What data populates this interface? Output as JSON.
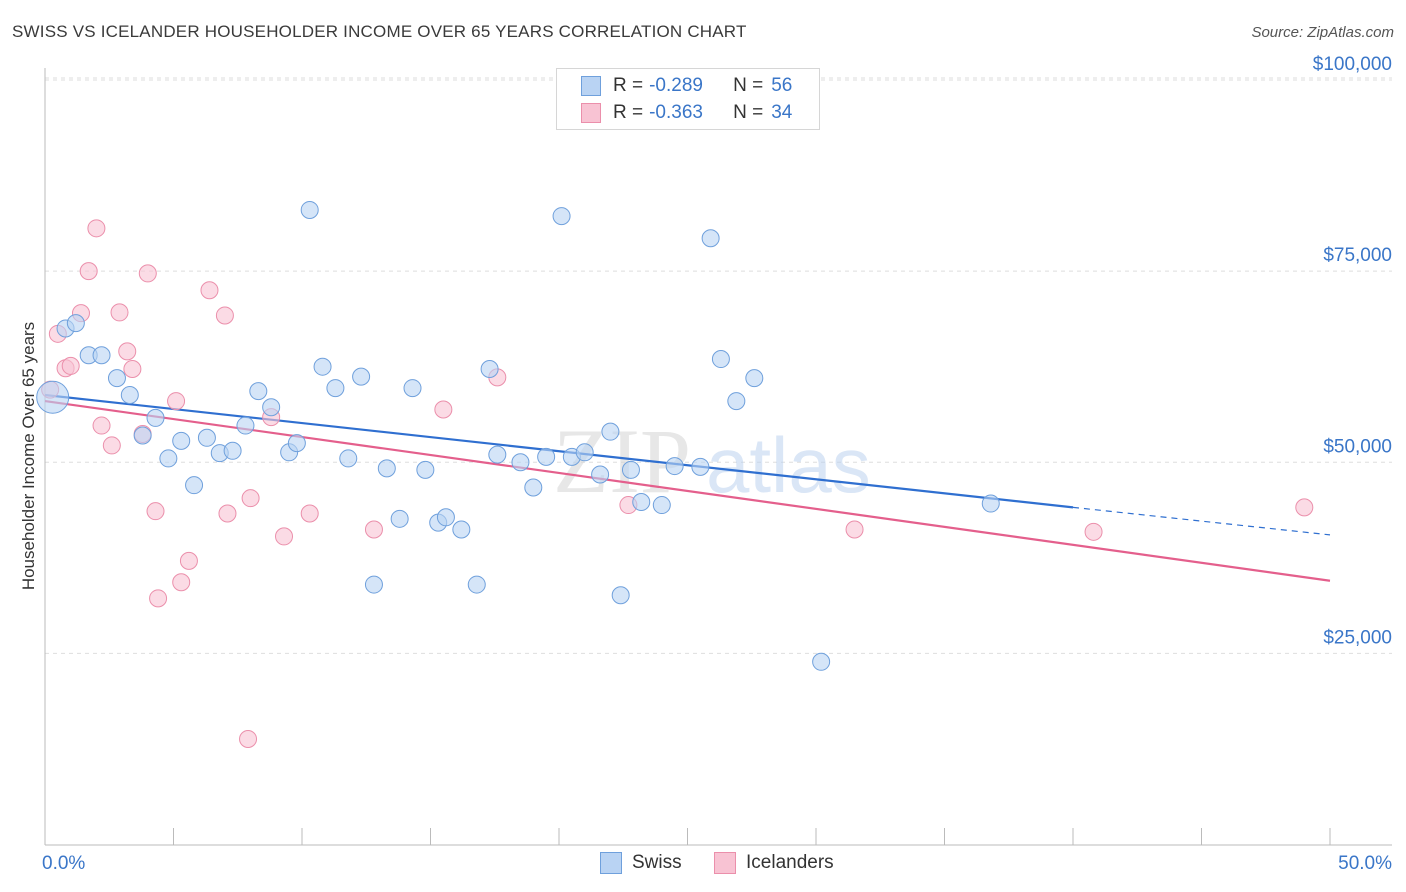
{
  "title": "SWISS VS ICELANDER HOUSEHOLDER INCOME OVER 65 YEARS CORRELATION CHART",
  "source": "Source: ZipAtlas.com",
  "watermark": {
    "zip": "ZIP",
    "atlas": "atlas"
  },
  "legend": {
    "r_label": "R =",
    "n_label": "N =",
    "entries": [
      {
        "name": "Swiss",
        "r": "-0.289",
        "n": "56"
      },
      {
        "name": "Icelanders",
        "r": "-0.363",
        "n": "34"
      }
    ]
  },
  "colors": {
    "swiss_fill": "#b9d3f3",
    "swiss_stroke": "#6fa0dc",
    "swiss_line": "#2f6fd0",
    "ice_fill": "#f8c3d3",
    "ice_stroke": "#eb8fab",
    "ice_line": "#e45f8c",
    "tick_label": "#3a76c8",
    "grid": "#dedede"
  },
  "chart_data": {
    "type": "scatter",
    "title": "SWISS VS ICELANDER HOUSEHOLDER INCOME OVER 65 YEARS CORRELATION CHART",
    "xlabel": "",
    "ylabel": "Householder Income Over 65 years",
    "xlim": [
      0,
      50
    ],
    "ylim": [
      0,
      105000
    ],
    "x_tick_labels": [
      "0.0%",
      "50.0%"
    ],
    "y_ticks": [
      25000,
      50000,
      75000,
      100000
    ],
    "y_tick_labels": [
      "$25,000",
      "$50,000",
      "$75,000",
      "$100,000"
    ],
    "series": [
      {
        "name": "Swiss",
        "points": [
          [
            0.3,
            58500
          ],
          [
            0.8,
            67500
          ],
          [
            1.2,
            68200
          ],
          [
            1.7,
            64000
          ],
          [
            2.2,
            64000
          ],
          [
            2.8,
            61000
          ],
          [
            3.3,
            58800
          ],
          [
            3.8,
            53500
          ],
          [
            4.3,
            55800
          ],
          [
            4.8,
            50500
          ],
          [
            5.3,
            52800
          ],
          [
            5.8,
            47000
          ],
          [
            6.3,
            53200
          ],
          [
            6.8,
            51200
          ],
          [
            7.3,
            51500
          ],
          [
            7.8,
            54800
          ],
          [
            8.3,
            59300
          ],
          [
            8.8,
            57200
          ],
          [
            9.5,
            51300
          ],
          [
            9.8,
            52500
          ],
          [
            10.3,
            83000
          ],
          [
            10.8,
            62500
          ],
          [
            11.3,
            59700
          ],
          [
            11.8,
            50500
          ],
          [
            12.3,
            61200
          ],
          [
            12.8,
            34000
          ],
          [
            13.3,
            49200
          ],
          [
            13.8,
            42600
          ],
          [
            14.3,
            59700
          ],
          [
            14.8,
            49000
          ],
          [
            15.3,
            42100
          ],
          [
            15.6,
            42800
          ],
          [
            16.2,
            41200
          ],
          [
            16.8,
            34000
          ],
          [
            17.3,
            62200
          ],
          [
            17.6,
            51000
          ],
          [
            18.5,
            50000
          ],
          [
            19.0,
            46700
          ],
          [
            19.5,
            50700
          ],
          [
            20.1,
            82200
          ],
          [
            20.5,
            50700
          ],
          [
            21.0,
            51300
          ],
          [
            21.6,
            48400
          ],
          [
            22.0,
            54000
          ],
          [
            22.4,
            32600
          ],
          [
            22.8,
            49000
          ],
          [
            23.2,
            44800
          ],
          [
            24.0,
            44400
          ],
          [
            24.5,
            49500
          ],
          [
            25.5,
            49400
          ],
          [
            25.9,
            79300
          ],
          [
            26.3,
            63500
          ],
          [
            26.9,
            58000
          ],
          [
            27.6,
            61000
          ],
          [
            30.2,
            23900
          ],
          [
            36.8,
            44600
          ]
        ]
      },
      {
        "name": "Icelanders",
        "points": [
          [
            0.2,
            59500
          ],
          [
            0.5,
            66800
          ],
          [
            0.8,
            62300
          ],
          [
            1.0,
            62600
          ],
          [
            1.4,
            69500
          ],
          [
            1.7,
            75000
          ],
          [
            2.0,
            80600
          ],
          [
            2.2,
            54800
          ],
          [
            2.6,
            52200
          ],
          [
            2.9,
            69600
          ],
          [
            3.2,
            64500
          ],
          [
            3.4,
            62200
          ],
          [
            3.8,
            53700
          ],
          [
            4.0,
            74700
          ],
          [
            4.3,
            43600
          ],
          [
            4.4,
            32200
          ],
          [
            5.1,
            58000
          ],
          [
            5.3,
            34300
          ],
          [
            5.6,
            37100
          ],
          [
            6.4,
            72500
          ],
          [
            7.0,
            69200
          ],
          [
            7.1,
            43300
          ],
          [
            7.9,
            13800
          ],
          [
            8.0,
            45300
          ],
          [
            8.8,
            55900
          ],
          [
            9.3,
            40300
          ],
          [
            10.3,
            43300
          ],
          [
            12.8,
            41200
          ],
          [
            15.5,
            56900
          ],
          [
            17.6,
            61100
          ],
          [
            22.7,
            44400
          ],
          [
            31.5,
            41200
          ],
          [
            40.8,
            40900
          ],
          [
            49.0,
            44100
          ]
        ]
      }
    ],
    "trendlines": [
      {
        "series": "Swiss",
        "x_start": 0,
        "y_start": 58800,
        "x_end_solid": 40.0,
        "y_end_solid": 44100,
        "x_end": 50,
        "y_end": 40500
      },
      {
        "series": "Icelanders",
        "x_start": 0,
        "y_start": 58000,
        "x_end": 50,
        "y_end": 34500
      }
    ]
  }
}
